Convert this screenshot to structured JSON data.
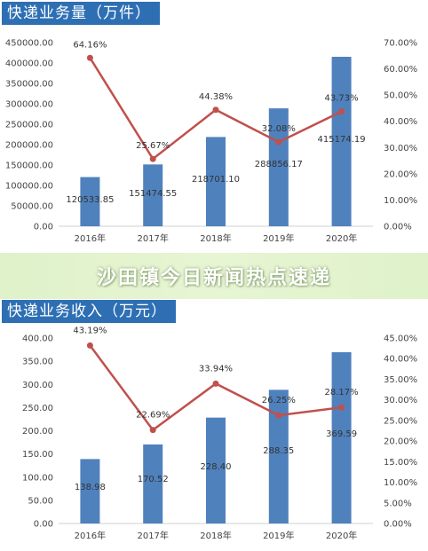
{
  "banner": {
    "text": "沙田镇今日新闻热点速递"
  },
  "colors": {
    "bar": "#4f81bd",
    "line": "#c0504d",
    "title_bg": "#2e6fb4"
  },
  "chart_data": [
    {
      "type": "bar",
      "title": "快递业务量（万件）",
      "categories": [
        "2016年",
        "2017年",
        "2018年",
        "2019年",
        "2020年"
      ],
      "series": [
        {
          "type": "bar",
          "axis": "left",
          "values": [
            120533.85,
            151474.55,
            218701.1,
            288856.17,
            415174.19
          ],
          "labels": [
            "120533.85",
            "151474.55",
            "218701.10",
            "288856.17",
            "415174.19"
          ]
        },
        {
          "type": "line",
          "axis": "right",
          "values": [
            64.16,
            25.67,
            44.38,
            32.08,
            43.73
          ],
          "labels": [
            "64.16%",
            "25.67%",
            "44.38%",
            "32.08%",
            "43.73%"
          ]
        }
      ],
      "y_left": {
        "min": 0,
        "max": 450000,
        "step": 50000,
        "ticks": [
          "0.00",
          "50000.00",
          "100000.00",
          "150000.00",
          "200000.00",
          "250000.00",
          "300000.00",
          "350000.00",
          "400000.00",
          "450000.00"
        ]
      },
      "y_right": {
        "min": 0,
        "max": 70,
        "step": 10,
        "ticks": [
          "0.00%",
          "10.00%",
          "20.00%",
          "30.00%",
          "40.00%",
          "50.00%",
          "60.00%",
          "70.00%"
        ]
      },
      "grid": false
    },
    {
      "type": "bar",
      "title": "快递业务收入（万元）",
      "categories": [
        "2016年",
        "2017年",
        "2018年",
        "2019年",
        "2020年"
      ],
      "series": [
        {
          "type": "bar",
          "axis": "left",
          "values": [
            138.98,
            170.52,
            228.4,
            288.35,
            369.59
          ],
          "labels": [
            "138.98",
            "170.52",
            "228.40",
            "288.35",
            "369.59"
          ]
        },
        {
          "type": "line",
          "axis": "right",
          "values": [
            43.19,
            22.69,
            33.94,
            26.25,
            28.17
          ],
          "labels": [
            "43.19%",
            "22.69%",
            "33.94%",
            "26.25%",
            "28.17%"
          ]
        }
      ],
      "y_left": {
        "min": 0,
        "max": 400,
        "step": 50,
        "ticks": [
          "0.00",
          "50.00",
          "100.00",
          "150.00",
          "200.00",
          "250.00",
          "300.00",
          "350.00",
          "400.00"
        ]
      },
      "y_right": {
        "min": 0,
        "max": 45,
        "step": 5,
        "ticks": [
          "0.00%",
          "5.00%",
          "10.00%",
          "15.00%",
          "20.00%",
          "25.00%",
          "30.00%",
          "35.00%",
          "40.00%",
          "45.00%"
        ]
      },
      "grid": false
    }
  ]
}
